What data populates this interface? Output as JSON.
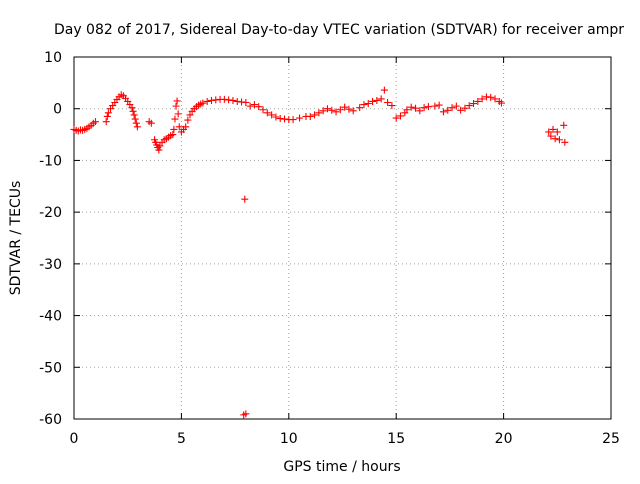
{
  "chart_data": {
    "type": "scatter",
    "title": "Day 082 of 2017, Sidereal Day-to-day VTEC variation (SDTVAR) for receiver ampr",
    "xlabel": "GPS time / hours",
    "ylabel": "SDTVAR / TECUs",
    "xlim": [
      0,
      25
    ],
    "ylim": [
      -60,
      10
    ],
    "x_ticks": [
      0,
      5,
      10,
      15,
      20,
      25
    ],
    "y_ticks": [
      -60,
      -50,
      -40,
      -30,
      -20,
      -10,
      0,
      10
    ],
    "x_tick_labels": [
      "0",
      "5",
      "10",
      "15",
      "20",
      "25"
    ],
    "y_tick_labels": [
      "-60",
      "-50",
      "-40",
      "-30",
      "-20",
      "-10",
      "0",
      "10"
    ],
    "grid": true,
    "legend": "none",
    "marker": "plus",
    "color": "#ff0000",
    "series": [
      {
        "name": "SDTVAR",
        "points": [
          [
            0.0,
            -4.0
          ],
          [
            0.1,
            -4.2
          ],
          [
            0.2,
            -4.3
          ],
          [
            0.3,
            -4.1
          ],
          [
            0.4,
            -4.2
          ],
          [
            0.5,
            -4.0
          ],
          [
            0.6,
            -3.8
          ],
          [
            0.7,
            -3.5
          ],
          [
            0.8,
            -3.2
          ],
          [
            0.9,
            -2.8
          ],
          [
            1.0,
            -2.5
          ],
          [
            1.5,
            -2.5
          ],
          [
            1.55,
            -1.5
          ],
          [
            1.6,
            -0.8
          ],
          [
            1.7,
            0.0
          ],
          [
            1.8,
            0.6
          ],
          [
            1.9,
            1.2
          ],
          [
            2.0,
            1.8
          ],
          [
            2.1,
            2.3
          ],
          [
            2.2,
            2.7
          ],
          [
            2.3,
            2.5
          ],
          [
            2.4,
            2.0
          ],
          [
            2.5,
            1.4
          ],
          [
            2.6,
            0.8
          ],
          [
            2.7,
            0.2
          ],
          [
            2.75,
            -0.5
          ],
          [
            2.8,
            -1.2
          ],
          [
            2.85,
            -2.0
          ],
          [
            2.9,
            -2.8
          ],
          [
            2.95,
            -3.5
          ],
          [
            3.5,
            -2.5
          ],
          [
            3.6,
            -2.8
          ],
          [
            3.75,
            -6.0
          ],
          [
            3.8,
            -6.5
          ],
          [
            3.85,
            -7.0
          ],
          [
            3.9,
            -7.5
          ],
          [
            3.95,
            -8.0
          ],
          [
            4.0,
            -7.2
          ],
          [
            4.1,
            -6.5
          ],
          [
            4.2,
            -6.0
          ],
          [
            4.3,
            -5.8
          ],
          [
            4.4,
            -5.5
          ],
          [
            4.5,
            -5.2
          ],
          [
            4.6,
            -5.0
          ],
          [
            4.65,
            -4.0
          ],
          [
            4.7,
            -2.0
          ],
          [
            4.75,
            0.5
          ],
          [
            4.8,
            1.5
          ],
          [
            4.85,
            -1.0
          ],
          [
            4.9,
            -3.5
          ],
          [
            5.0,
            -4.5
          ],
          [
            5.1,
            -4.0
          ],
          [
            5.2,
            -3.5
          ],
          [
            5.3,
            -2.2
          ],
          [
            5.4,
            -1.2
          ],
          [
            5.5,
            -0.5
          ],
          [
            5.6,
            0.0
          ],
          [
            5.7,
            0.4
          ],
          [
            5.8,
            0.7
          ],
          [
            5.9,
            0.9
          ],
          [
            6.0,
            1.1
          ],
          [
            6.2,
            1.4
          ],
          [
            6.4,
            1.6
          ],
          [
            6.6,
            1.7
          ],
          [
            6.8,
            1.8
          ],
          [
            7.0,
            1.8
          ],
          [
            7.2,
            1.7
          ],
          [
            7.4,
            1.6
          ],
          [
            7.6,
            1.4
          ],
          [
            7.8,
            1.3
          ],
          [
            8.0,
            1.2
          ],
          [
            7.95,
            -17.5
          ],
          [
            7.9,
            -59.2
          ],
          [
            8.0,
            -59.0
          ],
          [
            8.2,
            0.5
          ],
          [
            8.4,
            0.8
          ],
          [
            8.6,
            0.4
          ],
          [
            8.8,
            -0.2
          ],
          [
            9.0,
            -0.8
          ],
          [
            9.2,
            -1.2
          ],
          [
            9.4,
            -1.6
          ],
          [
            9.6,
            -1.9
          ],
          [
            9.8,
            -2.0
          ],
          [
            10.0,
            -2.1
          ],
          [
            10.2,
            -2.1
          ],
          [
            10.5,
            -1.8
          ],
          [
            10.8,
            -1.5
          ],
          [
            11.0,
            -1.5
          ],
          [
            11.2,
            -1.2
          ],
          [
            11.4,
            -0.8
          ],
          [
            11.6,
            -0.4
          ],
          [
            11.8,
            0.0
          ],
          [
            12.0,
            -0.3
          ],
          [
            12.2,
            -0.6
          ],
          [
            12.4,
            -0.2
          ],
          [
            12.6,
            0.3
          ],
          [
            12.8,
            -0.1
          ],
          [
            13.0,
            -0.4
          ],
          [
            13.3,
            0.2
          ],
          [
            13.5,
            0.8
          ],
          [
            13.7,
            1.0
          ],
          [
            13.9,
            1.4
          ],
          [
            14.1,
            1.6
          ],
          [
            14.3,
            1.9
          ],
          [
            14.45,
            3.6
          ],
          [
            14.6,
            1.2
          ],
          [
            14.8,
            0.6
          ],
          [
            15.0,
            -1.8
          ],
          [
            15.2,
            -1.4
          ],
          [
            15.4,
            -0.8
          ],
          [
            15.5,
            -0.2
          ],
          [
            15.7,
            0.3
          ],
          [
            15.9,
            0.1
          ],
          [
            16.1,
            -0.4
          ],
          [
            16.3,
            0.2
          ],
          [
            16.5,
            0.4
          ],
          [
            16.8,
            0.5
          ],
          [
            17.0,
            0.7
          ],
          [
            17.2,
            -0.6
          ],
          [
            17.4,
            -0.3
          ],
          [
            17.6,
            0.2
          ],
          [
            17.8,
            0.5
          ],
          [
            18.0,
            -0.3
          ],
          [
            18.2,
            0.1
          ],
          [
            18.4,
            0.6
          ],
          [
            18.6,
            1.0
          ],
          [
            18.8,
            1.4
          ],
          [
            19.0,
            1.9
          ],
          [
            19.2,
            2.3
          ],
          [
            19.4,
            2.2
          ],
          [
            19.6,
            1.9
          ],
          [
            19.8,
            1.4
          ],
          [
            19.9,
            1.1
          ],
          [
            22.1,
            -4.5
          ],
          [
            22.2,
            -5.3
          ],
          [
            22.3,
            -4.0
          ],
          [
            22.4,
            -5.8
          ],
          [
            22.5,
            -4.5
          ],
          [
            22.6,
            -6.0
          ],
          [
            22.8,
            -3.2
          ],
          [
            22.85,
            -6.5
          ]
        ]
      }
    ]
  }
}
